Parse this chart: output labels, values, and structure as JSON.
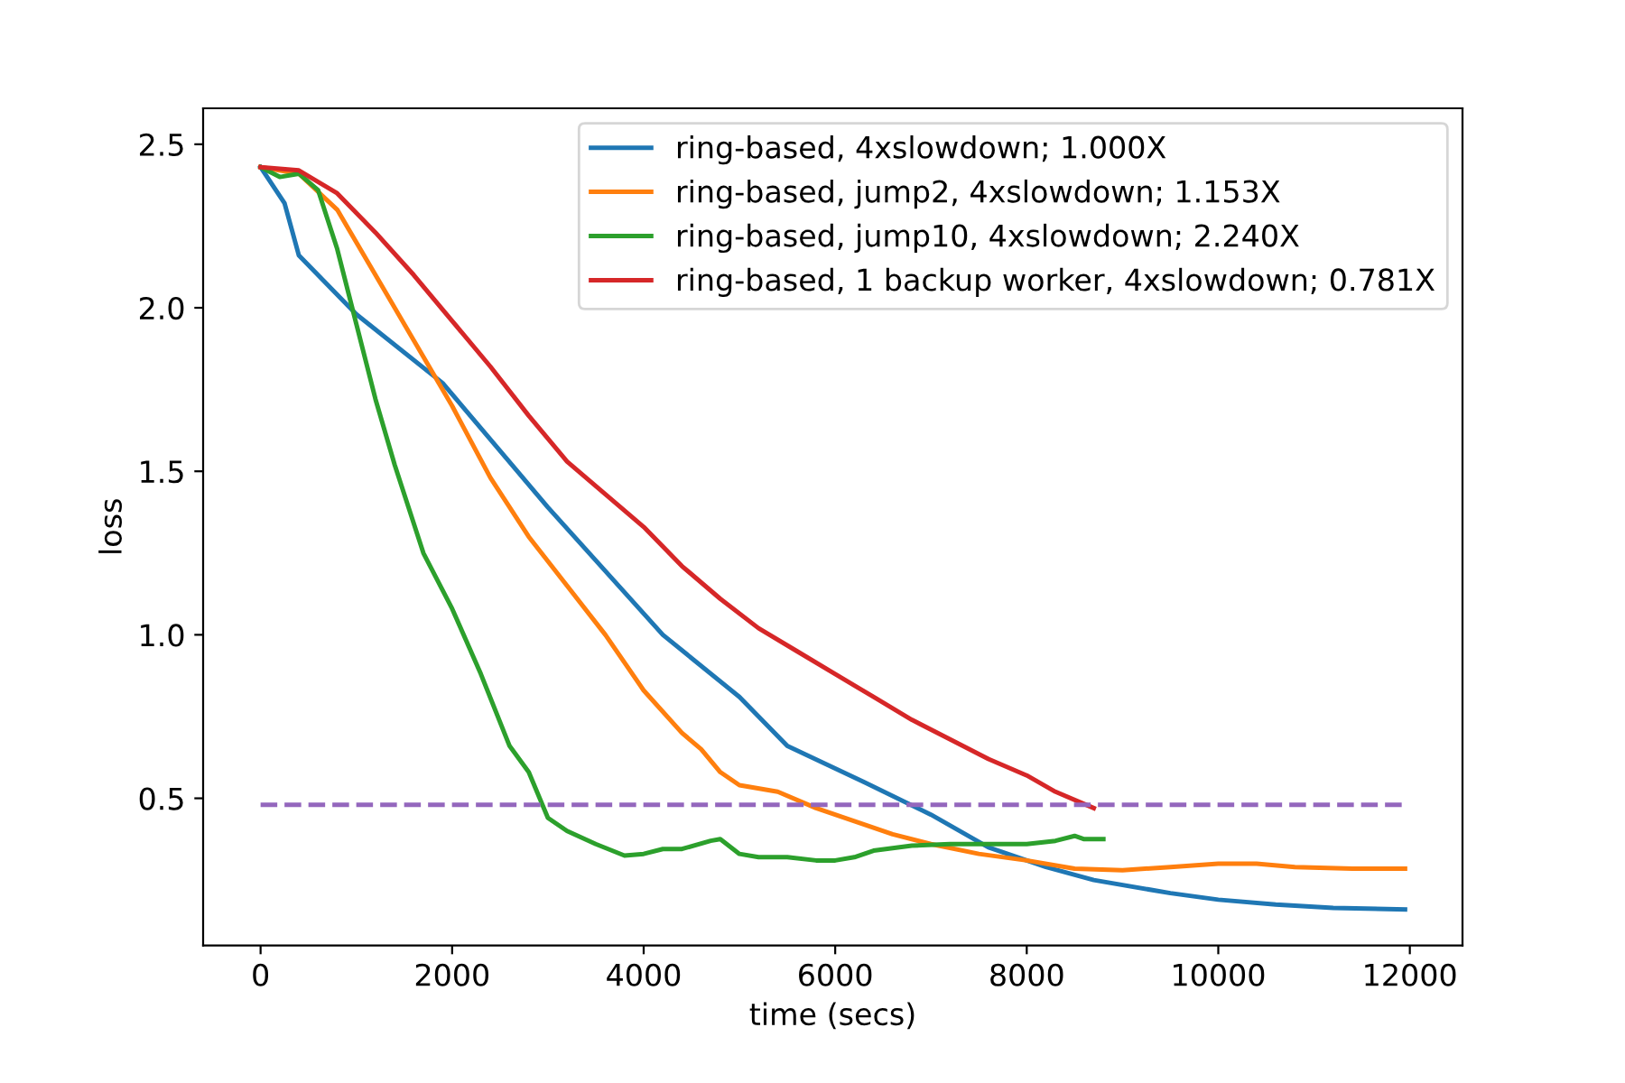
{
  "chart_data": {
    "type": "line",
    "xlabel": "time (secs)",
    "ylabel": "loss",
    "xlim": [
      -600,
      12550
    ],
    "ylim": [
      0.05,
      2.61
    ],
    "xticks": [
      0,
      2000,
      4000,
      6000,
      8000,
      10000,
      12000
    ],
    "yticks": [
      0.5,
      {
        "value": 1,
        "label": "1.0"
      },
      1.5,
      {
        "value": 2,
        "label": "2.0"
      },
      2.5
    ],
    "legend": "top right",
    "grid": false,
    "series": [
      {
        "name": "ring-based, 4xslowdown; 1.000X",
        "color": "#1f77b4",
        "x": [
          0,
          250,
          400,
          1000,
          1900,
          3000,
          4200,
          5000,
          5500,
          6300,
          7000,
          7600,
          8200,
          8700,
          9500,
          10000,
          10600,
          11200,
          11950
        ],
        "values": [
          2.43,
          2.32,
          2.16,
          1.98,
          1.77,
          1.39,
          1.0,
          0.81,
          0.66,
          0.55,
          0.45,
          0.35,
          0.29,
          0.25,
          0.21,
          0.19,
          0.175,
          0.165,
          0.16
        ]
      },
      {
        "name": "ring-based, jump2, 4xslowdown; 1.153X",
        "color": "#ff7f0e",
        "x": [
          0,
          400,
          800,
          1200,
          1600,
          2000,
          2400,
          2800,
          3200,
          3600,
          4000,
          4400,
          4600,
          4800,
          5000,
          5400,
          5800,
          6200,
          6600,
          7000,
          7500,
          8000,
          8500,
          9000,
          9500,
          10000,
          10400,
          10800,
          11400,
          11950
        ],
        "values": [
          2.43,
          2.41,
          2.3,
          2.1,
          1.9,
          1.7,
          1.48,
          1.3,
          1.15,
          1.0,
          0.83,
          0.7,
          0.65,
          0.58,
          0.54,
          0.52,
          0.47,
          0.43,
          0.39,
          0.36,
          0.33,
          0.31,
          0.285,
          0.28,
          0.29,
          0.3,
          0.3,
          0.29,
          0.285,
          0.285
        ]
      },
      {
        "name": "ring-based, jump10, 4xslowdown; 2.240X",
        "color": "#2ca02c",
        "x": [
          0,
          200,
          400,
          600,
          800,
          1000,
          1200,
          1400,
          1700,
          2000,
          2300,
          2600,
          2800,
          3000,
          3200,
          3500,
          3800,
          4000,
          4200,
          4400,
          4700,
          4800,
          5000,
          5200,
          5500,
          5800,
          6000,
          6200,
          6400,
          6800,
          7200,
          7600,
          8000,
          8300,
          8500,
          8600,
          8800
        ],
        "values": [
          2.43,
          2.4,
          2.41,
          2.36,
          2.18,
          1.95,
          1.72,
          1.52,
          1.25,
          1.08,
          0.88,
          0.66,
          0.58,
          0.44,
          0.4,
          0.36,
          0.325,
          0.33,
          0.345,
          0.345,
          0.37,
          0.375,
          0.33,
          0.32,
          0.32,
          0.31,
          0.31,
          0.32,
          0.34,
          0.355,
          0.36,
          0.36,
          0.36,
          0.37,
          0.385,
          0.375,
          0.375
        ]
      },
      {
        "name": "ring-based, 1 backup worker, 4xslowdown; 0.781X",
        "color": "#d62728",
        "x": [
          0,
          400,
          800,
          1200,
          1600,
          2000,
          2400,
          2800,
          3200,
          3600,
          4000,
          4400,
          4800,
          5200,
          5600,
          6000,
          6400,
          6800,
          7200,
          7600,
          8000,
          8300,
          8700
        ],
        "values": [
          2.43,
          2.42,
          2.35,
          2.23,
          2.1,
          1.96,
          1.82,
          1.67,
          1.53,
          1.43,
          1.33,
          1.21,
          1.11,
          1.02,
          0.95,
          0.88,
          0.81,
          0.74,
          0.68,
          0.62,
          0.57,
          0.52,
          0.47
        ]
      },
      {
        "color": "#9467bd",
        "line_style": "dashed",
        "x": [
          0,
          11950
        ],
        "values": [
          0.48,
          0.48
        ]
      }
    ]
  }
}
